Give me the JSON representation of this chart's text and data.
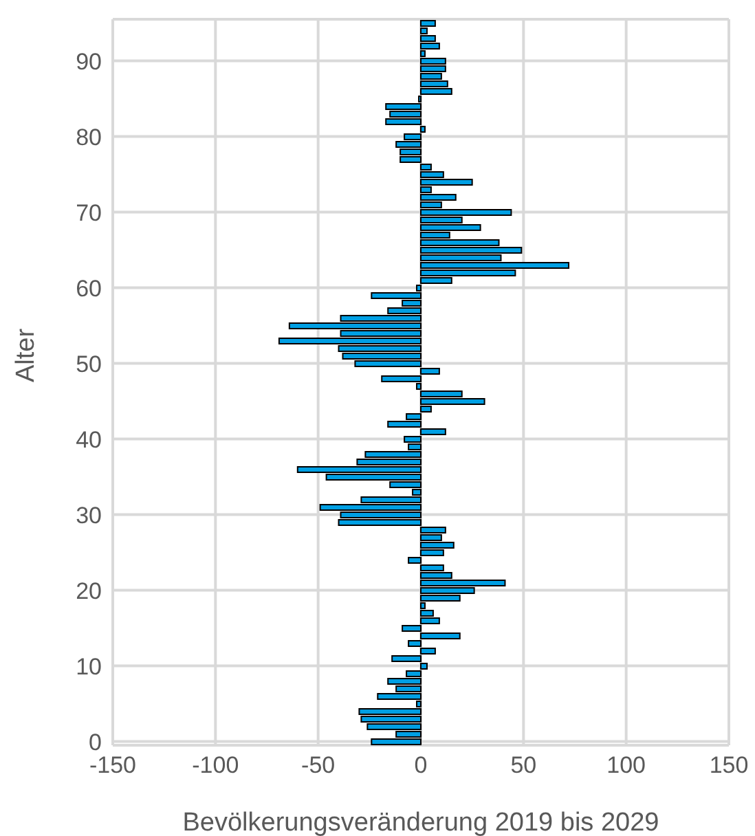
{
  "chart_data": {
    "type": "bar",
    "orientation": "horizontal",
    "xlabel": "Bevölkerungsveränderung 2019 bis 2029",
    "ylabel": "Alter",
    "categories": [
      null,
      null,
      null,
      null,
      null,
      "90",
      null,
      null,
      null,
      null,
      null,
      null,
      null,
      null,
      null,
      "80",
      null,
      null,
      null,
      null,
      null,
      null,
      null,
      null,
      null,
      "70",
      null,
      null,
      null,
      null,
      null,
      null,
      null,
      null,
      null,
      "60",
      null,
      null,
      null,
      null,
      null,
      null,
      null,
      null,
      null,
      "50",
      null,
      null,
      null,
      null,
      null,
      null,
      null,
      null,
      null,
      "40",
      null,
      null,
      null,
      null,
      null,
      null,
      null,
      null,
      null,
      "30",
      null,
      null,
      null,
      null,
      null,
      null,
      null,
      null,
      null,
      "20",
      null,
      null,
      null,
      null,
      null,
      null,
      null,
      null,
      null,
      "10",
      null,
      null,
      null,
      null,
      null,
      null,
      null,
      null,
      null,
      "0"
    ],
    "series": [
      {
        "color": "#009fe3",
        "values": [
          7,
          3,
          7,
          9,
          2,
          12,
          12,
          10,
          13,
          15,
          -1,
          -17,
          -15,
          -17,
          2,
          -8,
          -12,
          -10,
          -10,
          5,
          11,
          25,
          5,
          17,
          10,
          44,
          20,
          29,
          14,
          38,
          49,
          39,
          72,
          46,
          15,
          -2,
          -24,
          -9,
          -16,
          -39,
          -64,
          -39,
          -69,
          -40,
          -38,
          -32,
          9,
          -19,
          -2,
          20,
          31,
          5,
          -7,
          -16,
          12,
          -8,
          -6,
          -27,
          -31,
          -60,
          -46,
          -15,
          -4,
          -29,
          -49,
          -39,
          -40,
          12,
          10,
          16,
          11,
          -6,
          11,
          15,
          41,
          26,
          19,
          2,
          6,
          9,
          -9,
          19,
          -6,
          7,
          -14,
          3,
          -7,
          -16,
          -12,
          -21,
          -2,
          -30,
          -29,
          -26,
          -12,
          -24
        ]
      }
    ],
    "xlim": [
      -150,
      150
    ],
    "xticks": [
      -150,
      -100,
      -50,
      0,
      50,
      100,
      150
    ],
    "grid": true,
    "legend": false
  }
}
